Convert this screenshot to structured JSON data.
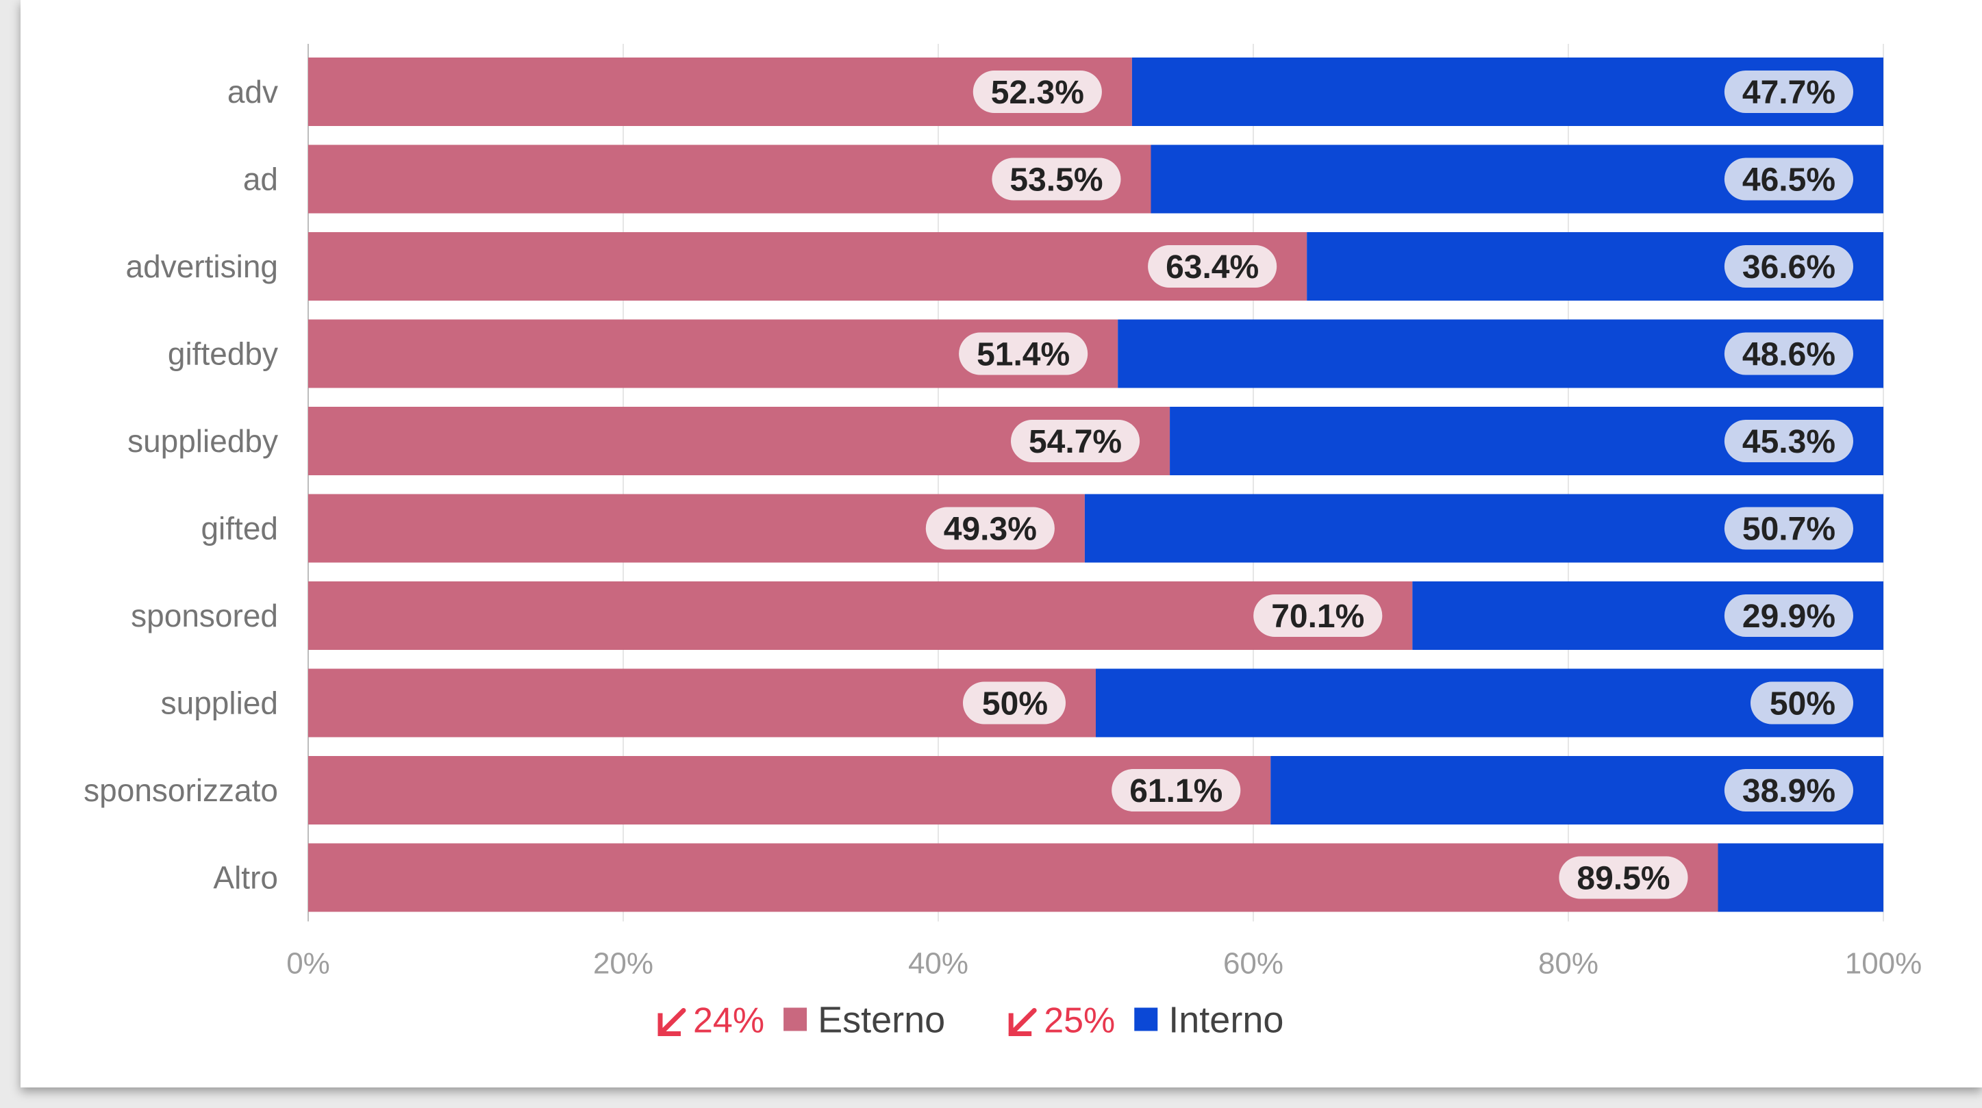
{
  "chart_data": {
    "type": "bar",
    "orientation": "horizontal",
    "stacked": "percent",
    "categories": [
      "adv",
      "ad",
      "advertising",
      "giftedby",
      "suppliedby",
      "gifted",
      "sponsored",
      "supplied",
      "sponsorizzato",
      "Altro"
    ],
    "series": [
      {
        "name": "Esterno",
        "color": "#c9687f",
        "values": [
          52.3,
          53.5,
          63.4,
          51.4,
          54.7,
          49.3,
          70.1,
          50,
          61.1,
          89.5
        ],
        "labels": [
          "52.3%",
          "53.5%",
          "63.4%",
          "51.4%",
          "54.7%",
          "49.3%",
          "70.1%",
          "50%",
          "61.1%",
          "89.5%"
        ],
        "change": "24%"
      },
      {
        "name": "Interno",
        "color": "#0b48d6",
        "values": [
          47.7,
          46.5,
          36.6,
          48.6,
          45.3,
          50.7,
          29.9,
          50,
          38.9,
          10.5
        ],
        "labels": [
          "47.7%",
          "46.5%",
          "36.6%",
          "48.6%",
          "45.3%",
          "50.7%",
          "29.9%",
          "50%",
          "38.9%",
          ""
        ],
        "change": "25%"
      }
    ],
    "xlim": [
      0,
      100
    ],
    "xticks": [
      "0%",
      "20%",
      "40%",
      "60%",
      "80%",
      "100%"
    ],
    "grid": true,
    "legend_position": "bottom-center",
    "change_color": "#e8384f",
    "change_icon": "arrow-down-left-icon"
  }
}
